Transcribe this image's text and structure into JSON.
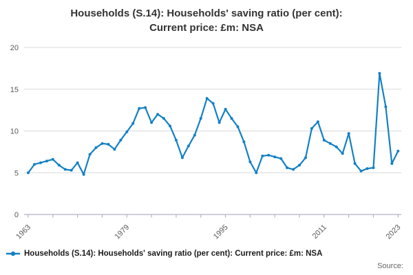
{
  "title": {
    "line1": "Households (S.14): Households' saving ratio (per cent):",
    "line2": "Current price: £m: NSA"
  },
  "legend": {
    "label": "Households (S.14): Households' saving ratio (per cent): Current price: £m: NSA"
  },
  "source": {
    "label": "Source:"
  },
  "colors": {
    "series": "#1380c4",
    "grid": "#d9d9d9",
    "axis": "#b1b1c7",
    "tick_text": "#595959",
    "title_text": "#333333",
    "legend_text": "#1a1a1a"
  },
  "chart_data": {
    "type": "line",
    "title": "Households (S.14): Households' saving ratio (per cent): Current price: £m: NSA",
    "xlabel": "",
    "ylabel": "",
    "ylim": [
      0,
      20
    ],
    "y_ticks": [
      0,
      5,
      10,
      15,
      20
    ],
    "x_tick_interval_years": 4,
    "x_tick_labels": [
      1963,
      1979,
      1995,
      2011,
      2023
    ],
    "grid": "horizontal",
    "legend_position": "bottom",
    "x": [
      1963,
      1964,
      1965,
      1966,
      1967,
      1968,
      1969,
      1970,
      1971,
      1972,
      1973,
      1974,
      1975,
      1976,
      1977,
      1978,
      1979,
      1980,
      1981,
      1982,
      1983,
      1984,
      1985,
      1986,
      1987,
      1988,
      1989,
      1990,
      1991,
      1992,
      1993,
      1994,
      1995,
      1996,
      1997,
      1998,
      1999,
      2000,
      2001,
      2002,
      2003,
      2004,
      2005,
      2006,
      2007,
      2008,
      2009,
      2010,
      2011,
      2012,
      2013,
      2014,
      2015,
      2016,
      2017,
      2018,
      2019,
      2020,
      2021,
      2022,
      2023
    ],
    "values": [
      5.0,
      6.0,
      6.2,
      6.4,
      6.6,
      5.9,
      5.4,
      5.3,
      6.2,
      4.8,
      7.2,
      8.0,
      8.5,
      8.4,
      7.8,
      8.9,
      9.9,
      10.9,
      12.7,
      12.8,
      11.0,
      12.0,
      11.5,
      10.6,
      8.9,
      6.8,
      8.2,
      9.5,
      11.5,
      13.9,
      13.3,
      11.0,
      12.6,
      11.5,
      10.5,
      8.7,
      6.3,
      5.0,
      7.0,
      7.1,
      6.9,
      6.7,
      5.6,
      5.4,
      5.9,
      6.8,
      10.3,
      11.1,
      8.9,
      8.5,
      8.1,
      7.3,
      9.7,
      6.1,
      5.2,
      5.5,
      5.6,
      16.9,
      12.9,
      6.1,
      7.6
    ]
  }
}
